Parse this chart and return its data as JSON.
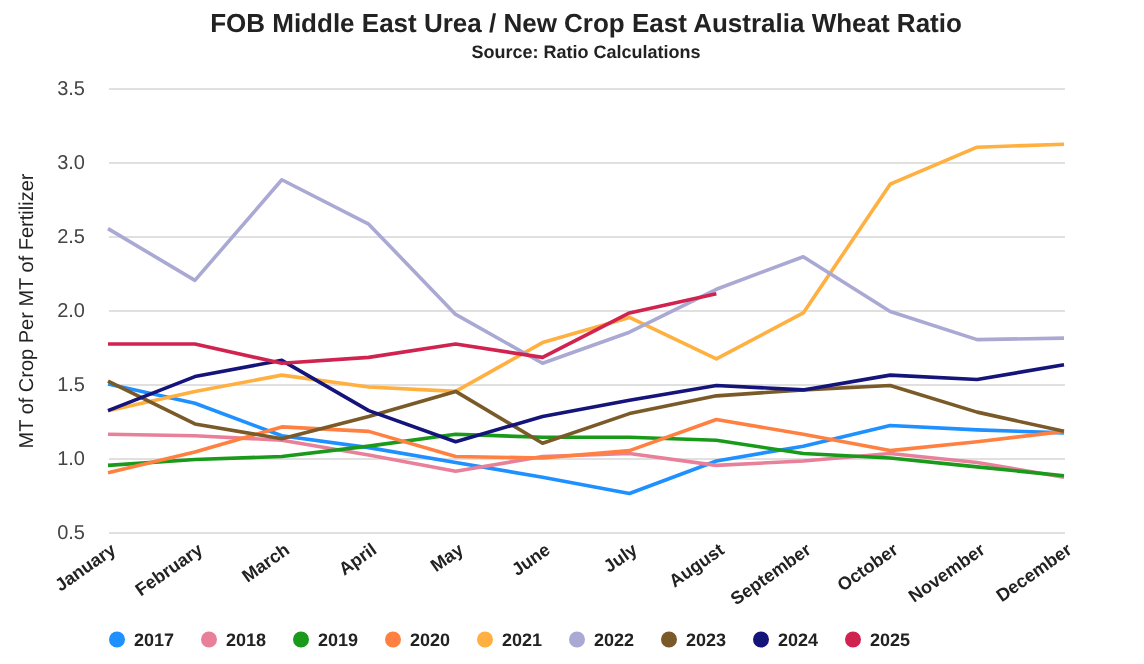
{
  "chart_data": {
    "type": "line",
    "title": "FOB Middle East Urea / New Crop East Australia Wheat Ratio",
    "subtitle": "Source: Ratio Calculations",
    "ylabel": "MT of Crop Per MT of Fertilizer",
    "categories": [
      "January",
      "February",
      "March",
      "April",
      "May",
      "June",
      "July",
      "August",
      "September",
      "October",
      "November",
      "December"
    ],
    "series": [
      {
        "name": "2017",
        "color": "#1e90ff",
        "values": [
          1.5,
          1.37,
          1.15,
          1.07,
          0.97,
          0.87,
          0.76,
          0.98,
          1.08,
          1.22,
          1.19,
          1.17
        ]
      },
      {
        "name": "2018",
        "color": "#e8809a",
        "values": [
          1.16,
          1.15,
          1.12,
          1.02,
          0.91,
          1.01,
          1.03,
          0.95,
          0.98,
          1.03,
          0.97,
          0.87
        ]
      },
      {
        "name": "2019",
        "color": "#1a9a1a",
        "values": [
          0.95,
          0.99,
          1.01,
          1.08,
          1.16,
          1.14,
          1.14,
          1.12,
          1.03,
          1.0,
          0.94,
          0.88
        ]
      },
      {
        "name": "2020",
        "color": "#ff8040",
        "values": [
          0.9,
          1.04,
          1.21,
          1.18,
          1.01,
          1.0,
          1.05,
          1.26,
          1.16,
          1.05,
          1.11,
          1.18
        ]
      },
      {
        "name": "2021",
        "color": "#ffb040",
        "values": [
          1.32,
          1.45,
          1.56,
          1.48,
          1.45,
          1.78,
          1.95,
          1.67,
          1.98,
          2.85,
          3.1,
          3.12
        ]
      },
      {
        "name": "2022",
        "color": "#a9a9d4",
        "values": [
          2.55,
          2.2,
          2.88,
          2.58,
          1.97,
          1.64,
          1.85,
          2.14,
          2.36,
          1.99,
          1.8,
          1.81
        ]
      },
      {
        "name": "2023",
        "color": "#7a5a28",
        "values": [
          1.52,
          1.23,
          1.13,
          1.28,
          1.45,
          1.1,
          1.3,
          1.42,
          1.46,
          1.49,
          1.31,
          1.18
        ]
      },
      {
        "name": "2024",
        "color": "#14147a",
        "values": [
          1.32,
          1.55,
          1.66,
          1.32,
          1.11,
          1.28,
          1.39,
          1.49,
          1.46,
          1.56,
          1.53,
          1.63
        ]
      },
      {
        "name": "2025",
        "color": "#d0234f",
        "values": [
          1.77,
          1.77,
          1.64,
          1.68,
          1.77,
          1.68,
          1.98,
          2.11,
          null,
          null,
          null,
          null
        ]
      }
    ],
    "ylim": [
      0.5,
      3.5
    ],
    "yticks": [
      {
        "value": 0.5,
        "label": "0.5"
      },
      {
        "value": 1,
        "label": "1.0"
      },
      {
        "value": 1.5,
        "label": "1.5"
      },
      {
        "value": 2,
        "label": "2.0"
      },
      {
        "value": 2.5,
        "label": "2.5"
      },
      {
        "value": 3,
        "label": "3.0"
      },
      {
        "value": 3.5,
        "label": "3.5"
      }
    ],
    "grid": "y",
    "legend": "bottom",
    "marker": "none",
    "line_style": "solid"
  }
}
